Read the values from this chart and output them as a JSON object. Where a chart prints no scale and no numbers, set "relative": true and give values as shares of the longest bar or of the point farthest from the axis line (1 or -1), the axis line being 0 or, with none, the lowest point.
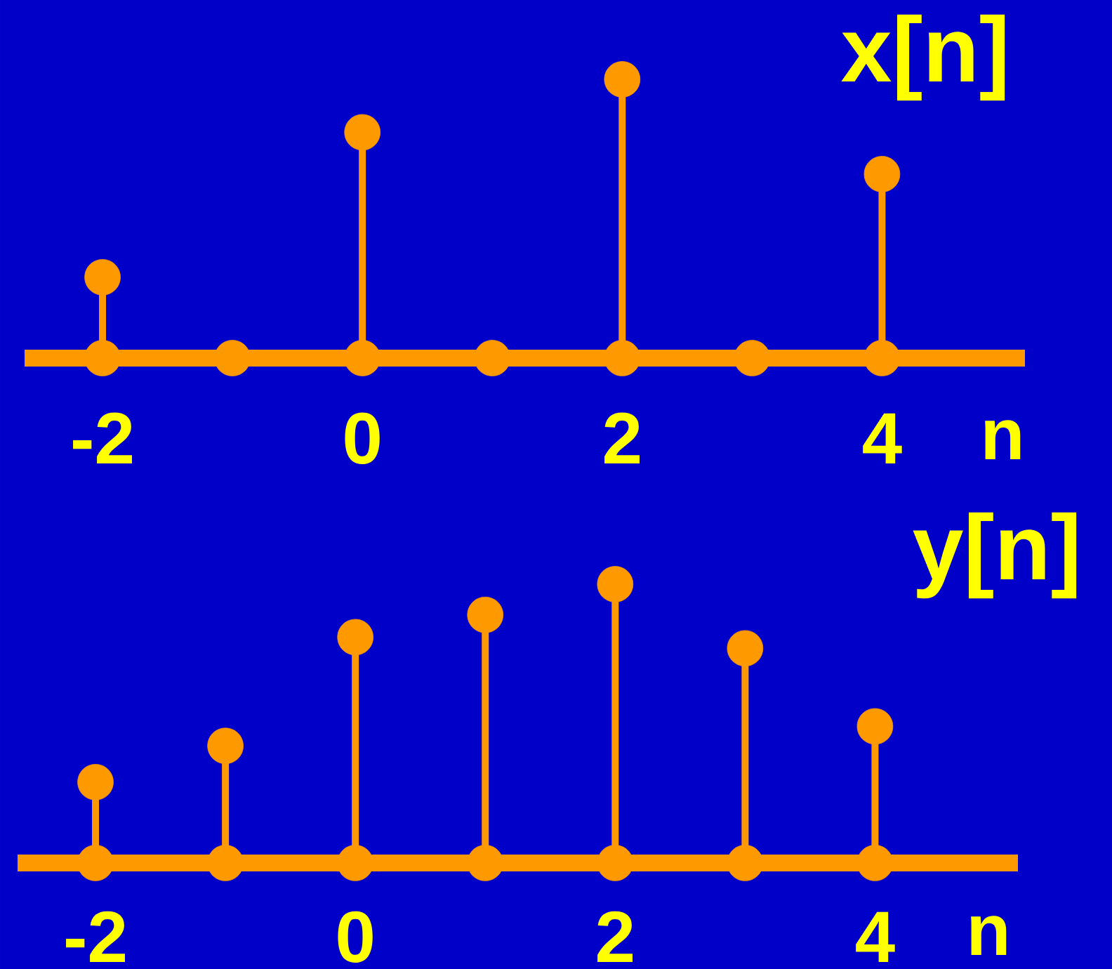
{
  "chart_data": [
    {
      "type": "lollipop",
      "title": "x[n]",
      "xlabel": "n",
      "x": [
        -2,
        -1,
        0,
        1,
        2,
        3,
        4
      ],
      "series": [
        {
          "color": "#ff9900",
          "values": [
            0.29,
            0,
            0.81,
            0,
            1,
            0,
            0.66
          ]
        },
        {
          "type": "scatter",
          "color": "#ff9900",
          "values": [
            0,
            null,
            0,
            null,
            0,
            null,
            0
          ]
        }
      ],
      "relative": true,
      "xlim": [
        -2.6,
        5.1
      ],
      "xticks": [
        -2,
        0,
        2,
        4
      ],
      "marker": "circle"
    },
    {
      "type": "lollipop",
      "title": "y[n]",
      "xlabel": "n",
      "x": [
        -2,
        -1,
        0,
        1,
        2,
        3,
        4
      ],
      "series": [
        {
          "color": "#ff9900",
          "values": [
            0.29,
            0.42,
            0.81,
            0.89,
            1,
            0.77,
            0.49
          ]
        },
        {
          "type": "scatter",
          "color": "#ff9900",
          "values": [
            0,
            0,
            0,
            0,
            0,
            0,
            0
          ]
        }
      ],
      "relative": true,
      "xlim": [
        -2.6,
        5.1
      ],
      "xticks": [
        -2,
        0,
        2,
        4
      ],
      "marker": "circle"
    }
  ]
}
